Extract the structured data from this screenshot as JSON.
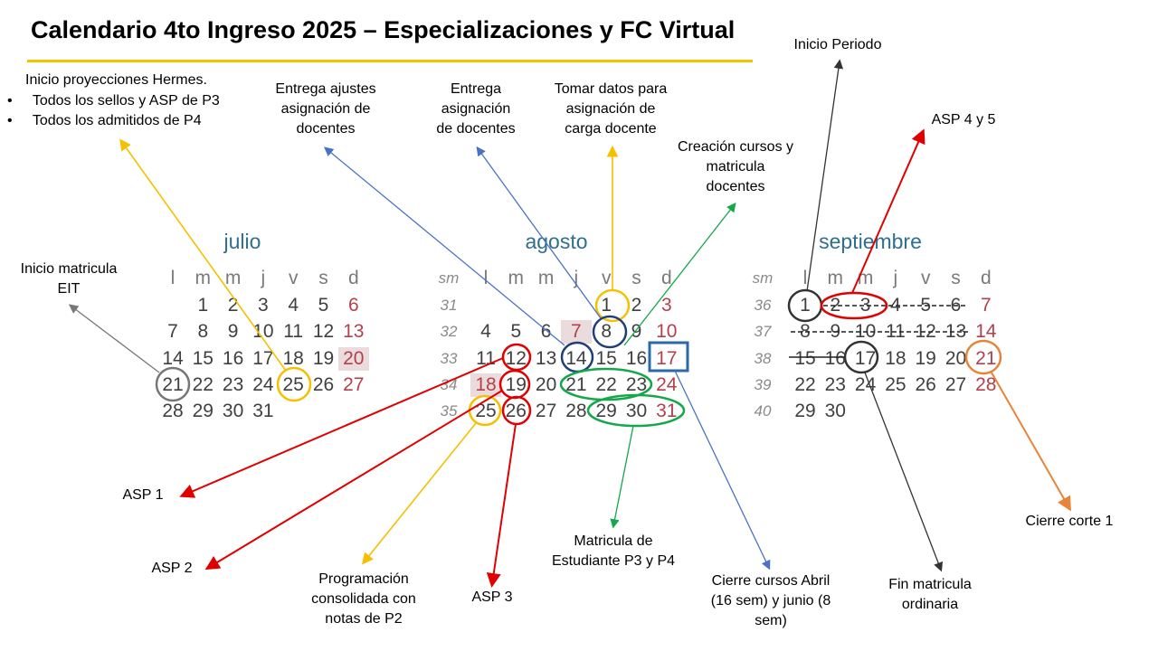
{
  "title": "Calendario 4to Ingreso 2025 – Especializaciones y FC Virtual",
  "colors": {
    "yellow": "#f5c000",
    "red": "#e00000",
    "blue": "#4a72c4",
    "green": "#14a84a",
    "gray": "#777777",
    "dark": "#333333",
    "orange": "#e8843a",
    "month": "#2e6f8e"
  },
  "calendars": {
    "julio": {
      "name": "julio",
      "headers": [
        "l",
        "m",
        "m",
        "j",
        "v",
        "s",
        "d"
      ],
      "rows": [
        [
          "",
          "1",
          "2",
          "3",
          "4",
          "5",
          "6"
        ],
        [
          "7",
          "8",
          "9",
          "10",
          "11",
          "12",
          "13"
        ],
        [
          "14",
          "15",
          "16",
          "17",
          "18",
          "19",
          "20"
        ],
        [
          "21",
          "22",
          "23",
          "24",
          "25",
          "26",
          "27"
        ],
        [
          "28",
          "29",
          "30",
          "31",
          "",
          "",
          ""
        ]
      ]
    },
    "agosto": {
      "name": "agosto",
      "sm_label": "sm",
      "headers": [
        "l",
        "m",
        "m",
        "j",
        "v",
        "s",
        "d"
      ],
      "weeks": [
        "31",
        "32",
        "33",
        "34",
        "35"
      ],
      "rows": [
        [
          "",
          "",
          "",
          "",
          "1",
          "2",
          "3"
        ],
        [
          "4",
          "5",
          "6",
          "7",
          "8",
          "9",
          "10"
        ],
        [
          "11",
          "12",
          "13",
          "14",
          "15",
          "16",
          "17"
        ],
        [
          "18",
          "19",
          "20",
          "21",
          "22",
          "23",
          "24"
        ],
        [
          "25",
          "26",
          "27",
          "28",
          "29",
          "30",
          "31"
        ]
      ]
    },
    "septiembre": {
      "name": "septiembre",
      "sm_label": "sm",
      "headers": [
        "l",
        "m",
        "m",
        "j",
        "v",
        "s",
        "d"
      ],
      "weeks": [
        "36",
        "37",
        "38",
        "39",
        "40"
      ],
      "rows": [
        [
          "1",
          "2",
          "3",
          "4",
          "5",
          "6",
          "7"
        ],
        [
          "8",
          "9",
          "10",
          "11",
          "12",
          "13",
          "14"
        ],
        [
          "15",
          "16",
          "17",
          "18",
          "19",
          "20",
          "21"
        ],
        [
          "22",
          "23",
          "24",
          "25",
          "26",
          "27",
          "28"
        ],
        [
          "29",
          "30",
          "",
          "",
          "",
          "",
          ""
        ]
      ]
    }
  },
  "annotations": {
    "hermes_title": "Inicio proyecciones Hermes.",
    "hermes_b1": "Todos los sellos y ASP de P3",
    "hermes_b2": "Todos los admitidos de P4",
    "ajustes_l1": "Entrega ajustes",
    "ajustes_l2": "asignación de",
    "ajustes_l3": "docentes",
    "asignacion_l1": "Entrega",
    "asignacion_l2": "asignación",
    "asignacion_l3": "de docentes",
    "tomar_l1": "Tomar datos para",
    "tomar_l2": "asignación de",
    "tomar_l3": "carga docente",
    "creacion_l1": "Creación cursos y",
    "creacion_l2": "matricula",
    "creacion_l3": "docentes",
    "inicio_periodo": "Inicio Periodo",
    "asp45": "ASP 4 y 5",
    "inicio_mat_l1": "Inicio matricula",
    "inicio_mat_l2": "EIT",
    "asp1": "ASP 1",
    "asp2": "ASP 2",
    "asp3": "ASP 3",
    "prog_l1": "Programación",
    "prog_l2": "consolidada con",
    "prog_l3": "notas de P2",
    "mat_est_l1": "Matricula de",
    "mat_est_l2": "Estudiante P3 y P4",
    "cierre_l1": "Cierre cursos Abril",
    "cierre_l2": "(16 sem)  y junio (8",
    "cierre_l3": "sem)",
    "fin_mat_l1": "Fin matricula",
    "fin_mat_l2": "ordinaria",
    "cierre_corte": "Cierre corte 1"
  }
}
